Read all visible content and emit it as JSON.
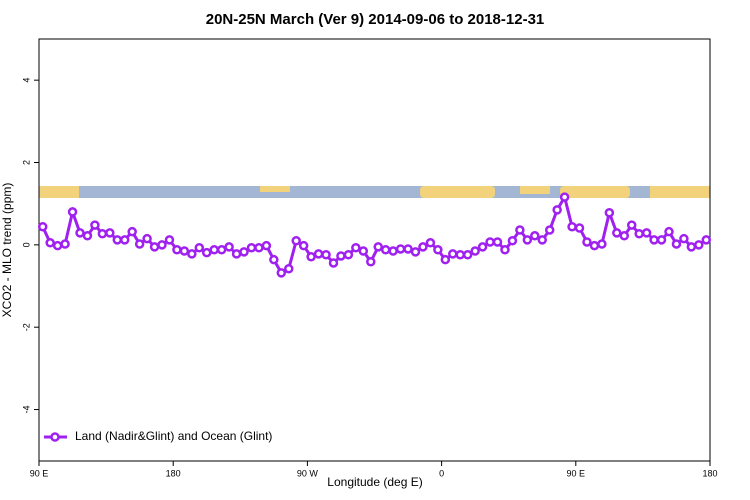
{
  "chart_data": {
    "type": "line",
    "title": "20N-25N March (Ver 9)   2014-09-06 to 2018-12-31",
    "xlabel": "Longitude (deg E)",
    "ylabel": "XCO2 - MLO trend (ppm)",
    "xlim": [
      90,
      540
    ],
    "ylim": [
      -5.25,
      5
    ],
    "xticks": [
      {
        "value": 90,
        "label": "90 E"
      },
      {
        "value": 180,
        "label": "180"
      },
      {
        "value": 270,
        "label": "90 W"
      },
      {
        "value": 360,
        "label": "0"
      },
      {
        "value": 450,
        "label": "90 E"
      },
      {
        "value": 540,
        "label": "180"
      }
    ],
    "yticks": [
      -4,
      -2,
      0,
      2,
      4
    ],
    "legend": "bottom-left",
    "x": [
      92.5,
      97.5,
      102.5,
      107.5,
      112.5,
      117.5,
      122.5,
      127.5,
      132.5,
      137.5,
      142.5,
      147.5,
      152.5,
      157.5,
      162.5,
      167.5,
      172.5,
      177.5,
      182.5,
      187.5,
      192.5,
      197.5,
      202.5,
      207.5,
      212.5,
      217.5,
      222.5,
      227.5,
      232.5,
      237.5,
      242.5,
      247.5,
      252.5,
      257.5,
      262.5,
      267.5,
      272.5,
      277.5,
      282.5,
      287.5,
      292.5,
      297.5,
      302.5,
      307.5,
      312.5,
      317.5,
      322.5,
      327.5,
      332.5,
      337.5,
      342.5,
      347.5,
      352.5,
      357.5,
      362.5,
      367.5,
      372.5,
      377.5,
      382.5,
      387.5,
      392.5,
      397.5,
      402.5,
      407.5,
      412.5,
      417.5,
      422.5,
      427.5,
      432.5,
      437.5,
      442.5,
      447.5,
      452.5,
      457.5,
      462.5,
      467.5,
      472.5,
      477.5,
      482.5,
      487.5,
      492.5,
      497.5,
      502.5,
      507.5,
      512.5,
      517.5,
      522.5,
      527.5,
      532.5,
      537.5
    ],
    "series": [
      {
        "name": "Land (Nadir&Glint) and Ocean (Glint)",
        "color": "#a020f0",
        "values": [
          0.44,
          0.05,
          -0.02,
          0.02,
          0.8,
          0.29,
          0.22,
          0.48,
          0.27,
          0.29,
          0.12,
          0.12,
          0.32,
          0.02,
          0.15,
          -0.05,
          0,
          0.12,
          -0.12,
          -0.15,
          -0.22,
          -0.07,
          -0.19,
          -0.12,
          -0.12,
          -0.05,
          -0.22,
          -0.17,
          -0.07,
          -0.07,
          -0.02,
          -0.36,
          -0.68,
          -0.58,
          0.1,
          -0.02,
          -0.29,
          -0.22,
          -0.24,
          -0.44,
          -0.27,
          -0.24,
          -0.07,
          -0.15,
          -0.41,
          -0.05,
          -0.12,
          -0.15,
          -0.1,
          -0.1,
          -0.17,
          -0.05,
          0.05,
          -0.12,
          -0.36,
          -0.22,
          -0.24,
          -0.24,
          -0.15,
          -0.05,
          0.07,
          0.07,
          -0.12,
          0.1,
          0.36,
          0.12,
          0.22,
          0.12,
          0.36,
          0.85,
          1.16,
          0.44,
          0.41,
          0.07,
          -0.02,
          0.02,
          0.78,
          0.29,
          0.22,
          0.48,
          0.27,
          0.29,
          0.12,
          0.12,
          0.32,
          0.02,
          0.15,
          -0.05,
          0,
          0.12
        ]
      }
    ]
  }
}
